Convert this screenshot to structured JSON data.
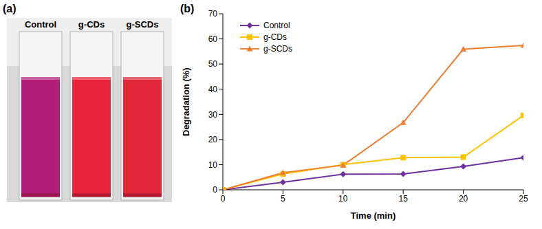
{
  "photo": {
    "label": "(a)",
    "captions": [
      "Control",
      "g-CDs",
      "g-SCDs"
    ]
  },
  "chart_data": {
    "type": "line",
    "title": "(b)",
    "x_label": "Time (min)",
    "y_label": "Degradation (%)",
    "x": [
      0,
      5,
      10,
      15,
      20,
      25
    ],
    "xlim": [
      0,
      25
    ],
    "xticks": [
      0,
      5,
      10,
      15,
      20,
      25
    ],
    "ylim": [
      0,
      70
    ],
    "yticks": [
      0,
      10,
      20,
      30,
      40,
      50,
      60,
      70
    ],
    "grid": false,
    "legend": "upper left",
    "series": [
      {
        "name": "Control",
        "color": "#7030a0",
        "marker": "diamond",
        "values": [
          0,
          3,
          6.2,
          6.3,
          9.3,
          12.8
        ]
      },
      {
        "name": "g-CDs",
        "color": "#ffc000",
        "marker": "square",
        "values": [
          0,
          6.3,
          10,
          12.8,
          13,
          29.6
        ]
      },
      {
        "name": "g-SCDs",
        "color": "#ed7d31",
        "marker": "triangle",
        "values": [
          0,
          6.8,
          9.8,
          26.7,
          55.9,
          57.4
        ]
      }
    ]
  }
}
